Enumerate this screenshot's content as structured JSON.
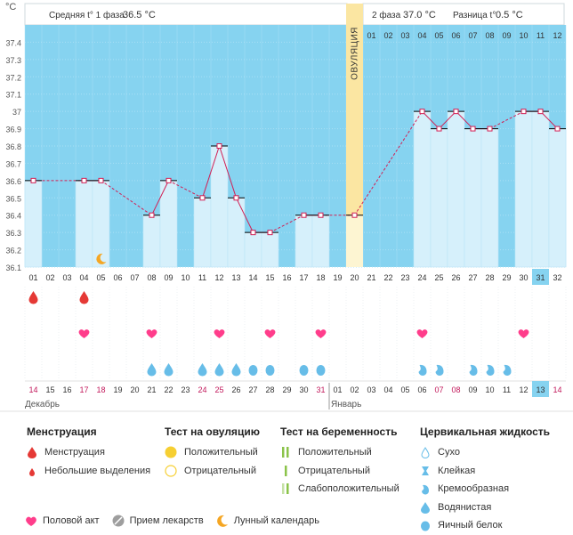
{
  "header": {
    "unit": "°C",
    "phase1_label": "Средняя t° 1 фаза",
    "phase1_value": "36.5 °C",
    "phase2_label": "2 фаза",
    "phase2_value": "37.0 °C",
    "diff_label": "Разница t°",
    "diff_value": "0.5 °C",
    "ovulation_label": "ОВУЛЯЦИЯ"
  },
  "colors": {
    "sky": "#86d3f0",
    "bar": "#d6f0fb",
    "ovulation": "#fbe6a2",
    "line": "#d21f54",
    "heart": "#ff3d8b",
    "drop": "#e53935",
    "mucus": "#67bde8"
  },
  "chart_data": {
    "type": "line",
    "title": "",
    "ylabel": "°C",
    "ylim": [
      36.1,
      37.5
    ],
    "y_ticks": [
      "37.4",
      "37.3",
      "37.2",
      "37.1",
      "37",
      "36.9",
      "36.8",
      "36.7",
      "36.6",
      "36.5",
      "36.4",
      "36.3",
      "36.2",
      "36.1"
    ],
    "cycle_days": [
      "01",
      "02",
      "03",
      "04",
      "05",
      "06",
      "07",
      "08",
      "09",
      "10",
      "11",
      "12",
      "13",
      "14",
      "15",
      "16",
      "17",
      "18",
      "19",
      "20",
      "21",
      "22",
      "23",
      "24",
      "25",
      "26",
      "27",
      "28",
      "29",
      "30",
      "31",
      "32"
    ],
    "temperatures": [
      36.6,
      null,
      null,
      36.6,
      36.6,
      null,
      null,
      36.4,
      36.6,
      null,
      36.5,
      36.8,
      36.5,
      36.3,
      36.3,
      null,
      36.4,
      36.4,
      null,
      36.4,
      null,
      null,
      null,
      37.0,
      36.9,
      37.0,
      36.9,
      36.9,
      null,
      37.0,
      37.0,
      36.9
    ],
    "temperature_series_name": "Базальная температура",
    "ovulation_day": "20",
    "phase2_day_labels": [
      "01",
      "02",
      "03",
      "04",
      "05",
      "06",
      "07",
      "08",
      "09",
      "10",
      "11",
      "12"
    ],
    "current_cycle_day": "31",
    "current_calendar_day": "13",
    "calendar_days": [
      "14",
      "15",
      "16",
      "17",
      "18",
      "19",
      "20",
      "21",
      "22",
      "23",
      "24",
      "25",
      "26",
      "27",
      "28",
      "29",
      "30",
      "31",
      "01",
      "02",
      "03",
      "04",
      "05",
      "06",
      "07",
      "08",
      "09",
      "10",
      "11",
      "12",
      "13",
      "14"
    ],
    "calendar_red_days": [
      "17",
      "18",
      "24",
      "25",
      "31",
      "07",
      "08",
      "14"
    ],
    "month_start": "Декабрь",
    "month_second": "Январь",
    "menstruation_days": [
      "01",
      "04"
    ],
    "intercourse_days": [
      "04",
      "08",
      "12",
      "15",
      "18",
      "24",
      "30"
    ],
    "moon_days": [
      "05"
    ],
    "mucus": [
      {
        "day": "08",
        "kind": "watery"
      },
      {
        "day": "09",
        "kind": "watery"
      },
      {
        "day": "11",
        "kind": "watery"
      },
      {
        "day": "12",
        "kind": "watery"
      },
      {
        "day": "13",
        "kind": "watery"
      },
      {
        "day": "14",
        "kind": "eggwhite"
      },
      {
        "day": "15",
        "kind": "eggwhite"
      },
      {
        "day": "17",
        "kind": "eggwhite"
      },
      {
        "day": "18",
        "kind": "eggwhite"
      },
      {
        "day": "24",
        "kind": "creamy"
      },
      {
        "day": "25",
        "kind": "creamy"
      },
      {
        "day": "27",
        "kind": "creamy"
      },
      {
        "day": "28",
        "kind": "creamy"
      },
      {
        "day": "29",
        "kind": "creamy"
      }
    ]
  },
  "legend": {
    "menstruation": {
      "title": "Менструация",
      "items": [
        "Менструация",
        "Небольшие выделения"
      ]
    },
    "ovulation_test": {
      "title": "Тест на овуляцию",
      "items": [
        "Положительный",
        "Отрицательный"
      ]
    },
    "pregnancy_test": {
      "title": "Тест на беременность",
      "items": [
        "Положительный",
        "Отрицательный",
        "Слабоположительный"
      ]
    },
    "cervical": {
      "title": "Цервикальная жидкость",
      "items": [
        "Сухо",
        "Клейкая",
        "Кремообразная",
        "Водянистая",
        "Яичный белок"
      ]
    },
    "bottom": [
      "Половой акт",
      "Прием лекарств",
      "Лунный календарь"
    ]
  }
}
